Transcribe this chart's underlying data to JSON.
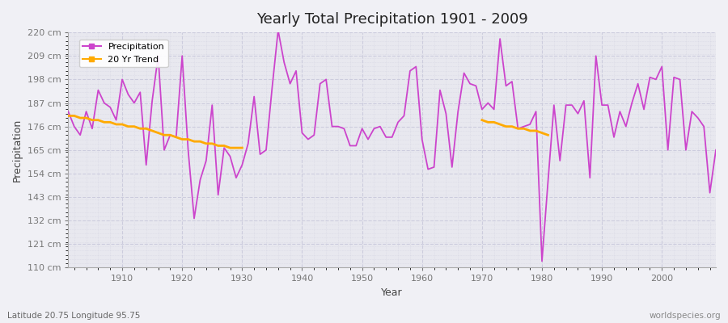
{
  "title": "Yearly Total Precipitation 1901 - 2009",
  "xlabel": "Year",
  "ylabel": "Precipitation",
  "bottom_left_label": "Latitude 20.75 Longitude 95.75",
  "bottom_right_label": "worldspecies.org",
  "precipitation_color": "#cc44cc",
  "trend_color": "#ffaa00",
  "background_color": "#f0f0f5",
  "plot_bg_color": "#e8e8ef",
  "grid_color": "#ccccdd",
  "ytick_labels": [
    "110 cm",
    "121 cm",
    "132 cm",
    "143 cm",
    "154 cm",
    "165 cm",
    "176 cm",
    "187 cm",
    "198 cm",
    "209 cm",
    "220 cm"
  ],
  "ytick_values": [
    110,
    121,
    132,
    143,
    154,
    165,
    176,
    187,
    198,
    209,
    220
  ],
  "years": [
    1901,
    1902,
    1903,
    1904,
    1905,
    1906,
    1907,
    1908,
    1909,
    1910,
    1911,
    1912,
    1913,
    1914,
    1915,
    1916,
    1917,
    1918,
    1919,
    1920,
    1921,
    1922,
    1923,
    1924,
    1925,
    1926,
    1927,
    1928,
    1929,
    1930,
    1931,
    1932,
    1933,
    1934,
    1935,
    1936,
    1937,
    1938,
    1939,
    1940,
    1941,
    1942,
    1943,
    1944,
    1945,
    1946,
    1947,
    1948,
    1949,
    1950,
    1951,
    1952,
    1953,
    1954,
    1955,
    1956,
    1957,
    1958,
    1959,
    1960,
    1961,
    1962,
    1963,
    1964,
    1965,
    1966,
    1967,
    1968,
    1969,
    1970,
    1971,
    1972,
    1973,
    1974,
    1975,
    1976,
    1977,
    1978,
    1979,
    1980,
    1981,
    1982,
    1983,
    1984,
    1985,
    1986,
    1987,
    1988,
    1989,
    1990,
    1991,
    1992,
    1993,
    1994,
    1995,
    1996,
    1997,
    1998,
    1999,
    2000,
    2001,
    2002,
    2003,
    2004,
    2005,
    2006,
    2007,
    2008,
    2009
  ],
  "precipitation": [
    183,
    176,
    172,
    183,
    175,
    193,
    187,
    185,
    179,
    198,
    191,
    187,
    192,
    158,
    188,
    209,
    165,
    172,
    171,
    209,
    165,
    133,
    151,
    160,
    186,
    144,
    166,
    162,
    152,
    158,
    168,
    190,
    163,
    165,
    194,
    221,
    206,
    196,
    202,
    173,
    170,
    172,
    196,
    198,
    176,
    176,
    175,
    167,
    167,
    175,
    170,
    175,
    176,
    171,
    171,
    178,
    181,
    202,
    204,
    170,
    156,
    157,
    193,
    182,
    157,
    183,
    201,
    196,
    195,
    184,
    187,
    184,
    217,
    195,
    197,
    175,
    176,
    177,
    183,
    113,
    150,
    186,
    160,
    186,
    186,
    182,
    188,
    152,
    209,
    186,
    186,
    171,
    183,
    176,
    187,
    196,
    184,
    199,
    198,
    204,
    165,
    199,
    198,
    165,
    183,
    180,
    176,
    145,
    165
  ],
  "trend1_years": [
    1901,
    1902,
    1903,
    1904,
    1905,
    1906,
    1907,
    1908,
    1909,
    1910,
    1911,
    1912,
    1913,
    1914,
    1915,
    1916,
    1917,
    1918,
    1919,
    1920,
    1921,
    1922,
    1923,
    1924,
    1925,
    1926,
    1927,
    1928,
    1929,
    1930
  ],
  "trend1_values": [
    181,
    181,
    180,
    180,
    179,
    179,
    178,
    178,
    177,
    177,
    176,
    176,
    175,
    175,
    174,
    173,
    172,
    172,
    171,
    170,
    170,
    169,
    169,
    168,
    168,
    167,
    167,
    166,
    166,
    166
  ],
  "trend2_years": [
    1970,
    1971,
    1972,
    1973,
    1974,
    1975,
    1976,
    1977,
    1978,
    1979,
    1980,
    1981
  ],
  "trend2_values": [
    179,
    178,
    178,
    177,
    176,
    176,
    175,
    175,
    174,
    174,
    173,
    172
  ]
}
